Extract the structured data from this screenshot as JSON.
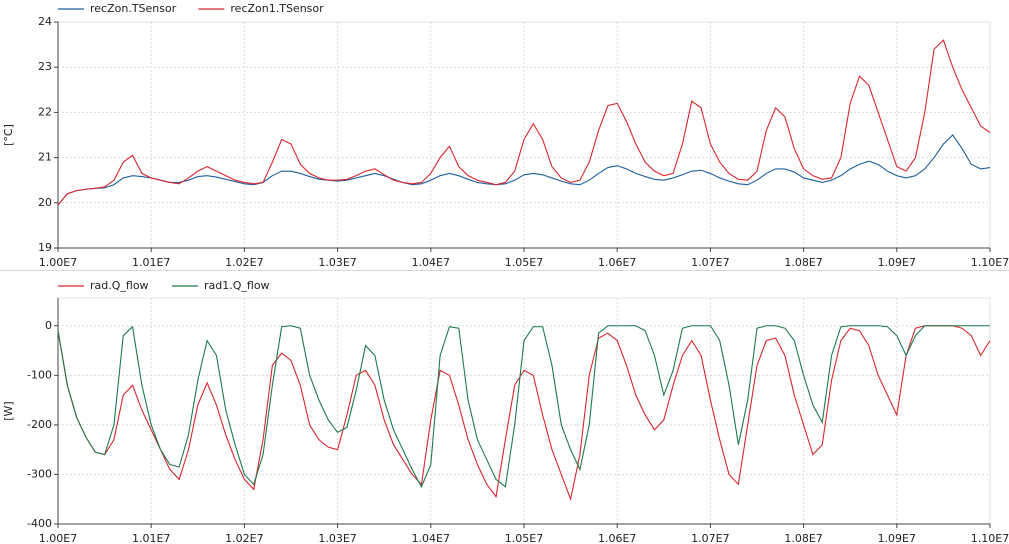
{
  "chart_data": [
    {
      "type": "line",
      "y_label": "[°C]",
      "grid": true,
      "x": [
        10000000,
        10010000,
        10020000,
        10030000,
        10040000,
        10050000,
        10060000,
        10070000,
        10080000,
        10090000,
        10100000,
        10110000,
        10120000,
        10130000,
        10140000,
        10150000,
        10160000,
        10170000,
        10180000,
        10190000,
        10200000,
        10210000,
        10220000,
        10230000,
        10240000,
        10250000,
        10260000,
        10270000,
        10280000,
        10290000,
        10300000,
        10310000,
        10320000,
        10330000,
        10340000,
        10350000,
        10360000,
        10370000,
        10380000,
        10390000,
        10400000,
        10410000,
        10420000,
        10430000,
        10440000,
        10450000,
        10460000,
        10470000,
        10480000,
        10490000,
        10500000,
        10510000,
        10520000,
        10530000,
        10540000,
        10550000,
        10560000,
        10570000,
        10580000,
        10590000,
        10600000,
        10610000,
        10620000,
        10630000,
        10640000,
        10650000,
        10660000,
        10670000,
        10680000,
        10690000,
        10700000,
        10710000,
        10720000,
        10730000,
        10740000,
        10750000,
        10760000,
        10770000,
        10780000,
        10790000,
        10800000,
        10810000,
        10820000,
        10830000,
        10840000,
        10850000,
        10860000,
        10870000,
        10880000,
        10890000,
        10900000,
        10910000,
        10920000,
        10930000,
        10940000,
        10950000,
        10960000,
        10970000,
        10980000,
        10990000,
        11000000
      ],
      "series": [
        {
          "name": "recZon.TSensor",
          "color": "#1f5f9f",
          "values": [
            19.95,
            20.2,
            20.27,
            20.3,
            20.32,
            20.33,
            20.4,
            20.55,
            20.6,
            20.58,
            20.55,
            20.5,
            20.45,
            20.45,
            20.5,
            20.58,
            20.6,
            20.57,
            20.52,
            20.47,
            20.42,
            20.4,
            20.45,
            20.6,
            20.7,
            20.7,
            20.65,
            20.58,
            20.52,
            20.5,
            20.48,
            20.5,
            20.55,
            20.6,
            20.65,
            20.6,
            20.52,
            20.45,
            20.4,
            20.42,
            20.5,
            20.6,
            20.65,
            20.6,
            20.52,
            20.45,
            20.42,
            20.4,
            20.42,
            20.5,
            20.62,
            20.65,
            20.62,
            20.55,
            20.48,
            20.42,
            20.4,
            20.5,
            20.65,
            20.78,
            20.82,
            20.75,
            20.65,
            20.58,
            20.52,
            20.5,
            20.55,
            20.62,
            20.7,
            20.72,
            20.65,
            20.55,
            20.48,
            20.42,
            20.4,
            20.5,
            20.65,
            20.75,
            20.75,
            20.68,
            20.55,
            20.5,
            20.45,
            20.5,
            20.6,
            20.75,
            20.85,
            20.92,
            20.85,
            20.7,
            20.6,
            20.55,
            20.6,
            20.75,
            21.0,
            21.3,
            21.5,
            21.2,
            20.85,
            20.75,
            20.78
          ]
        },
        {
          "name": "recZon1.TSensor",
          "color": "#d8262e",
          "values": [
            19.95,
            20.2,
            20.27,
            20.3,
            20.32,
            20.35,
            20.5,
            20.9,
            21.05,
            20.65,
            20.55,
            20.5,
            20.45,
            20.42,
            20.55,
            20.7,
            20.8,
            20.7,
            20.6,
            20.5,
            20.45,
            20.42,
            20.45,
            20.9,
            21.4,
            21.3,
            20.85,
            20.65,
            20.55,
            20.5,
            20.5,
            20.52,
            20.6,
            20.7,
            20.75,
            20.62,
            20.5,
            20.45,
            20.42,
            20.45,
            20.65,
            21.0,
            21.25,
            20.8,
            20.6,
            20.5,
            20.45,
            20.4,
            20.45,
            20.7,
            21.4,
            21.75,
            21.4,
            20.8,
            20.55,
            20.45,
            20.5,
            20.9,
            21.6,
            22.15,
            22.2,
            21.8,
            21.3,
            20.9,
            20.7,
            20.6,
            20.65,
            21.3,
            22.25,
            22.1,
            21.3,
            20.9,
            20.65,
            20.52,
            20.5,
            20.7,
            21.6,
            22.1,
            21.9,
            21.2,
            20.75,
            20.6,
            20.52,
            20.55,
            21.0,
            22.2,
            22.8,
            22.6,
            22.0,
            21.4,
            20.8,
            20.7,
            21.0,
            22.0,
            23.4,
            23.6,
            23.0,
            22.5,
            22.1,
            21.7,
            21.55
          ]
        }
      ],
      "xlim": [
        10000000,
        11000000
      ],
      "ylim": [
        19,
        24
      ],
      "yticks": [
        19,
        20,
        21,
        22,
        23,
        24
      ],
      "xticks": [
        {
          "value": 10000000,
          "label": "1.00E7"
        },
        {
          "value": 10100000,
          "label": "1.01E7"
        },
        {
          "value": 10200000,
          "label": "1.02E7"
        },
        {
          "value": 10300000,
          "label": "1.03E7"
        },
        {
          "value": 10400000,
          "label": "1.04E7"
        },
        {
          "value": 10500000,
          "label": "1.05E7"
        },
        {
          "value": 10600000,
          "label": "1.06E7"
        },
        {
          "value": 10700000,
          "label": "1.07E7"
        },
        {
          "value": 10800000,
          "label": "1.08E7"
        },
        {
          "value": 10900000,
          "label": "1.09E7"
        },
        {
          "value": 11000000,
          "label": "1.10E7"
        }
      ]
    },
    {
      "type": "line",
      "y_label": "[W]",
      "grid": true,
      "x": [
        10000000,
        10010000,
        10020000,
        10030000,
        10040000,
        10050000,
        10060000,
        10070000,
        10080000,
        10090000,
        10100000,
        10110000,
        10120000,
        10130000,
        10140000,
        10150000,
        10160000,
        10170000,
        10180000,
        10190000,
        10200000,
        10210000,
        10220000,
        10230000,
        10240000,
        10250000,
        10260000,
        10270000,
        10280000,
        10290000,
        10300000,
        10310000,
        10320000,
        10330000,
        10340000,
        10350000,
        10360000,
        10370000,
        10380000,
        10390000,
        10400000,
        10410000,
        10420000,
        10430000,
        10440000,
        10450000,
        10460000,
        10470000,
        10480000,
        10490000,
        10500000,
        10510000,
        10520000,
        10530000,
        10540000,
        10550000,
        10560000,
        10570000,
        10580000,
        10590000,
        10600000,
        10610000,
        10620000,
        10630000,
        10640000,
        10650000,
        10660000,
        10670000,
        10680000,
        10690000,
        10700000,
        10710000,
        10720000,
        10730000,
        10740000,
        10750000,
        10760000,
        10770000,
        10780000,
        10790000,
        10800000,
        10810000,
        10820000,
        10830000,
        10840000,
        10850000,
        10860000,
        10870000,
        10880000,
        10890000,
        10900000,
        10910000,
        10920000,
        10930000,
        10940000,
        10950000,
        10960000,
        10970000,
        10980000,
        10990000,
        11000000
      ],
      "series": [
        {
          "name": "rad.Q_flow",
          "color": "#d8262e",
          "values": [
            -10,
            -120,
            -185,
            -225,
            -255,
            -260,
            -230,
            -140,
            -120,
            -170,
            -210,
            -250,
            -290,
            -310,
            -250,
            -160,
            -115,
            -160,
            -220,
            -270,
            -310,
            -330,
            -230,
            -80,
            -55,
            -70,
            -120,
            -200,
            -230,
            -245,
            -250,
            -180,
            -100,
            -90,
            -120,
            -190,
            -240,
            -270,
            -300,
            -320,
            -190,
            -90,
            -100,
            -160,
            -230,
            -280,
            -320,
            -345,
            -230,
            -120,
            -90,
            -100,
            -180,
            -250,
            -300,
            -350,
            -260,
            -100,
            -25,
            -15,
            -30,
            -80,
            -140,
            -180,
            -210,
            -190,
            -120,
            -60,
            -30,
            -60,
            -150,
            -230,
            -300,
            -320,
            -200,
            -80,
            -30,
            -25,
            -60,
            -140,
            -200,
            -260,
            -240,
            -110,
            -30,
            -5,
            -10,
            -40,
            -100,
            -140,
            -180,
            -60,
            -5,
            0,
            0,
            0,
            0,
            -5,
            -20,
            -60,
            -30
          ]
        },
        {
          "name": "rad1.Q_flow",
          "color": "#1e7a4c",
          "values": [
            -10,
            -120,
            -185,
            -225,
            -255,
            -260,
            -200,
            -20,
            -2,
            -120,
            -200,
            -250,
            -280,
            -285,
            -220,
            -110,
            -30,
            -60,
            -170,
            -240,
            -300,
            -320,
            -260,
            -120,
            -2,
            0,
            -5,
            -100,
            -150,
            -190,
            -215,
            -205,
            -130,
            -40,
            -60,
            -150,
            -210,
            -250,
            -290,
            -325,
            -280,
            -60,
            -2,
            -5,
            -150,
            -230,
            -270,
            -310,
            -325,
            -200,
            -30,
            -2,
            -2,
            -80,
            -200,
            -250,
            -290,
            -200,
            -15,
            0,
            0,
            0,
            0,
            -10,
            -60,
            -140,
            -90,
            -5,
            0,
            0,
            0,
            -30,
            -120,
            -240,
            -150,
            -5,
            0,
            0,
            -5,
            -30,
            -100,
            -160,
            -195,
            -60,
            -2,
            0,
            0,
            0,
            0,
            -2,
            -20,
            -60,
            -20,
            0,
            0,
            0,
            0,
            0,
            0,
            0,
            0
          ]
        }
      ],
      "xlim": [
        10000000,
        11000000
      ],
      "ylim": [
        -400,
        56
      ],
      "yticks": [
        -400,
        -300,
        -200,
        -100,
        0
      ],
      "xticks": [
        {
          "value": 10000000,
          "label": "1.00E7"
        },
        {
          "value": 10100000,
          "label": "1.01E7"
        },
        {
          "value": 10200000,
          "label": "1.02E7"
        },
        {
          "value": 10300000,
          "label": "1.03E7"
        },
        {
          "value": 10400000,
          "label": "1.04E7"
        },
        {
          "value": 10500000,
          "label": "1.05E7"
        },
        {
          "value": 10600000,
          "label": "1.06E7"
        },
        {
          "value": 10700000,
          "label": "1.07E7"
        },
        {
          "value": 10800000,
          "label": "1.08E7"
        },
        {
          "value": 10900000,
          "label": "1.09E7"
        },
        {
          "value": 11000000,
          "label": "1.10E7"
        }
      ]
    }
  ]
}
